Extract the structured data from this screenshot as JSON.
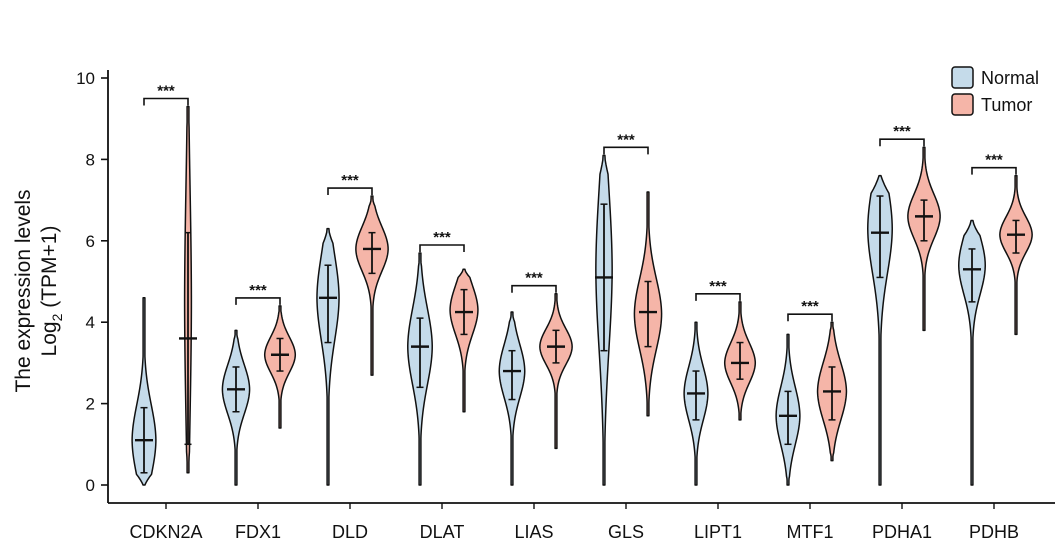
{
  "chart_data": {
    "type": "violin",
    "ylabel_line1": "The expression levels",
    "ylabel_line2_base": "Log",
    "ylabel_line2_sub": "2",
    "ylabel_line2_rest": " (TPM+1)",
    "ylim": [
      0,
      10
    ],
    "yticks": [
      "0",
      "2",
      "4",
      "6",
      "8",
      "10"
    ],
    "categories": [
      "CDKN2A",
      "FDX1",
      "DLD",
      "DLAT",
      "LIAS",
      "GLS",
      "LIPT1",
      "MTF1",
      "PDHA1",
      "PDHB"
    ],
    "significance": [
      "***",
      "***",
      "***",
      "***",
      "***",
      "***",
      "***",
      "***",
      "***",
      "***"
    ],
    "legend": {
      "position": "top-right"
    },
    "series": [
      {
        "name": "Normal",
        "color": "#c5dbea",
        "violins": [
          {
            "min": 0.0,
            "max": 4.6,
            "q1": 0.3,
            "median": 1.1,
            "q3": 1.9,
            "mode": 1.1,
            "width": 0.7
          },
          {
            "min": 0.0,
            "max": 3.8,
            "q1": 1.8,
            "median": 2.35,
            "q3": 2.9,
            "mode": 2.35,
            "width": 0.8
          },
          {
            "min": 0.0,
            "max": 6.3,
            "q1": 3.5,
            "median": 4.6,
            "q3": 5.4,
            "mode": 4.6,
            "width": 0.65
          },
          {
            "min": 0.0,
            "max": 5.7,
            "q1": 2.4,
            "median": 3.4,
            "q3": 4.1,
            "mode": 3.4,
            "width": 0.72
          },
          {
            "min": 0.0,
            "max": 4.25,
            "q1": 2.1,
            "median": 2.8,
            "q3": 3.3,
            "mode": 2.8,
            "width": 0.75
          },
          {
            "min": 0.0,
            "max": 8.1,
            "q1": 3.3,
            "median": 5.1,
            "q3": 6.9,
            "mode": 5.3,
            "width": 0.48
          },
          {
            "min": 0.0,
            "max": 4.0,
            "q1": 1.6,
            "median": 2.25,
            "q3": 2.8,
            "mode": 2.25,
            "width": 0.7
          },
          {
            "min": 0.0,
            "max": 3.7,
            "q1": 1.0,
            "median": 1.7,
            "q3": 2.3,
            "mode": 1.7,
            "width": 0.7
          },
          {
            "min": 0.0,
            "max": 7.6,
            "q1": 5.1,
            "median": 6.2,
            "q3": 7.1,
            "mode": 6.3,
            "width": 0.72
          },
          {
            "min": 0.0,
            "max": 6.5,
            "q1": 4.5,
            "median": 5.3,
            "q3": 5.8,
            "mode": 5.4,
            "width": 0.78
          }
        ]
      },
      {
        "name": "Tumor",
        "color": "#f5b5a8",
        "violins": [
          {
            "min": 0.3,
            "max": 9.3,
            "q1": 1.0,
            "median": 3.6,
            "q3": 6.2,
            "mode": 4.5,
            "width": 0.2
          },
          {
            "min": 1.4,
            "max": 4.4,
            "q1": 2.8,
            "median": 3.2,
            "q3": 3.6,
            "mode": 3.2,
            "width": 0.9
          },
          {
            "min": 2.7,
            "max": 7.1,
            "q1": 5.2,
            "median": 5.8,
            "q3": 6.2,
            "mode": 5.8,
            "width": 0.95
          },
          {
            "min": 1.8,
            "max": 5.3,
            "q1": 3.7,
            "median": 4.25,
            "q3": 4.8,
            "mode": 4.3,
            "width": 0.82
          },
          {
            "min": 0.9,
            "max": 4.7,
            "q1": 3.0,
            "median": 3.4,
            "q3": 3.8,
            "mode": 3.4,
            "width": 0.95
          },
          {
            "min": 1.7,
            "max": 7.2,
            "q1": 3.4,
            "median": 4.25,
            "q3": 5.0,
            "mode": 4.2,
            "width": 0.8
          },
          {
            "min": 1.6,
            "max": 4.5,
            "q1": 2.6,
            "median": 3.0,
            "q3": 3.5,
            "mode": 3.0,
            "width": 0.9
          },
          {
            "min": 0.6,
            "max": 4.0,
            "q1": 1.6,
            "median": 2.3,
            "q3": 2.9,
            "mode": 2.3,
            "width": 0.85
          },
          {
            "min": 3.8,
            "max": 8.3,
            "q1": 6.0,
            "median": 6.6,
            "q3": 7.0,
            "mode": 6.6,
            "width": 0.95
          },
          {
            "min": 3.7,
            "max": 7.6,
            "q1": 5.7,
            "median": 6.15,
            "q3": 6.5,
            "mode": 6.15,
            "width": 0.95
          }
        ]
      }
    ]
  }
}
